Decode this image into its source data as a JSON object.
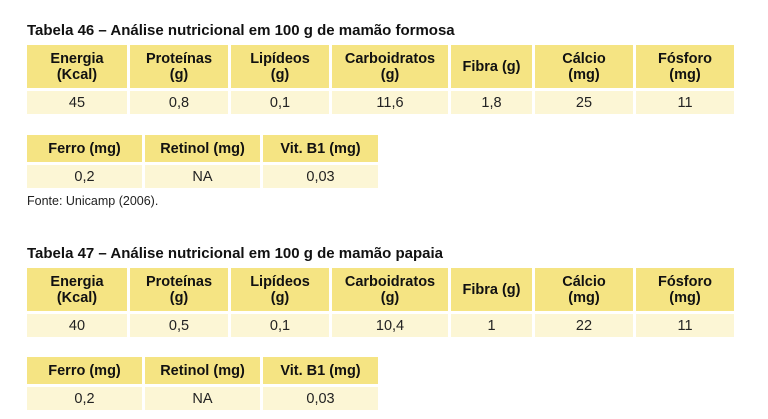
{
  "tables": [
    {
      "title": "Tabela 46 – Análise nutricional em 100 g de mamão formosa",
      "row1": {
        "headers": [
          "Energia\n(Kcal)",
          "Proteínas\n(g)",
          "Lipídeos\n(g)",
          "Carboidratos\n(g)",
          "Fibra (g)",
          "Cálcio\n(mg)",
          "Fósforo\n(mg)"
        ],
        "values": [
          "45",
          "0,8",
          "0,1",
          "11,6",
          "1,8",
          "25",
          "11"
        ]
      },
      "row2": {
        "headers": [
          "Ferro (mg)",
          "Retinol (mg)",
          "Vit. B1 (mg)"
        ],
        "values": [
          "0,2",
          "NA",
          "0,03"
        ]
      },
      "source": "Fonte: Unicamp (2006)."
    },
    {
      "title": "Tabela 47 – Análise nutricional em 100 g de mamão papaia",
      "row1": {
        "headers": [
          "Energia\n(Kcal)",
          "Proteínas\n(g)",
          "Lipídeos\n(g)",
          "Carboidratos\n(g)",
          "Fibra (g)",
          "Cálcio\n(mg)",
          "Fósforo\n(mg)"
        ],
        "values": [
          "40",
          "0,5",
          "0,1",
          "10,4",
          "1",
          "22",
          "11"
        ]
      },
      "row2": {
        "headers": [
          "Ferro (mg)",
          "Retinol (mg)",
          "Vit. B1 (mg)"
        ],
        "values": [
          "0,2",
          "NA",
          "0,03"
        ]
      }
    }
  ]
}
